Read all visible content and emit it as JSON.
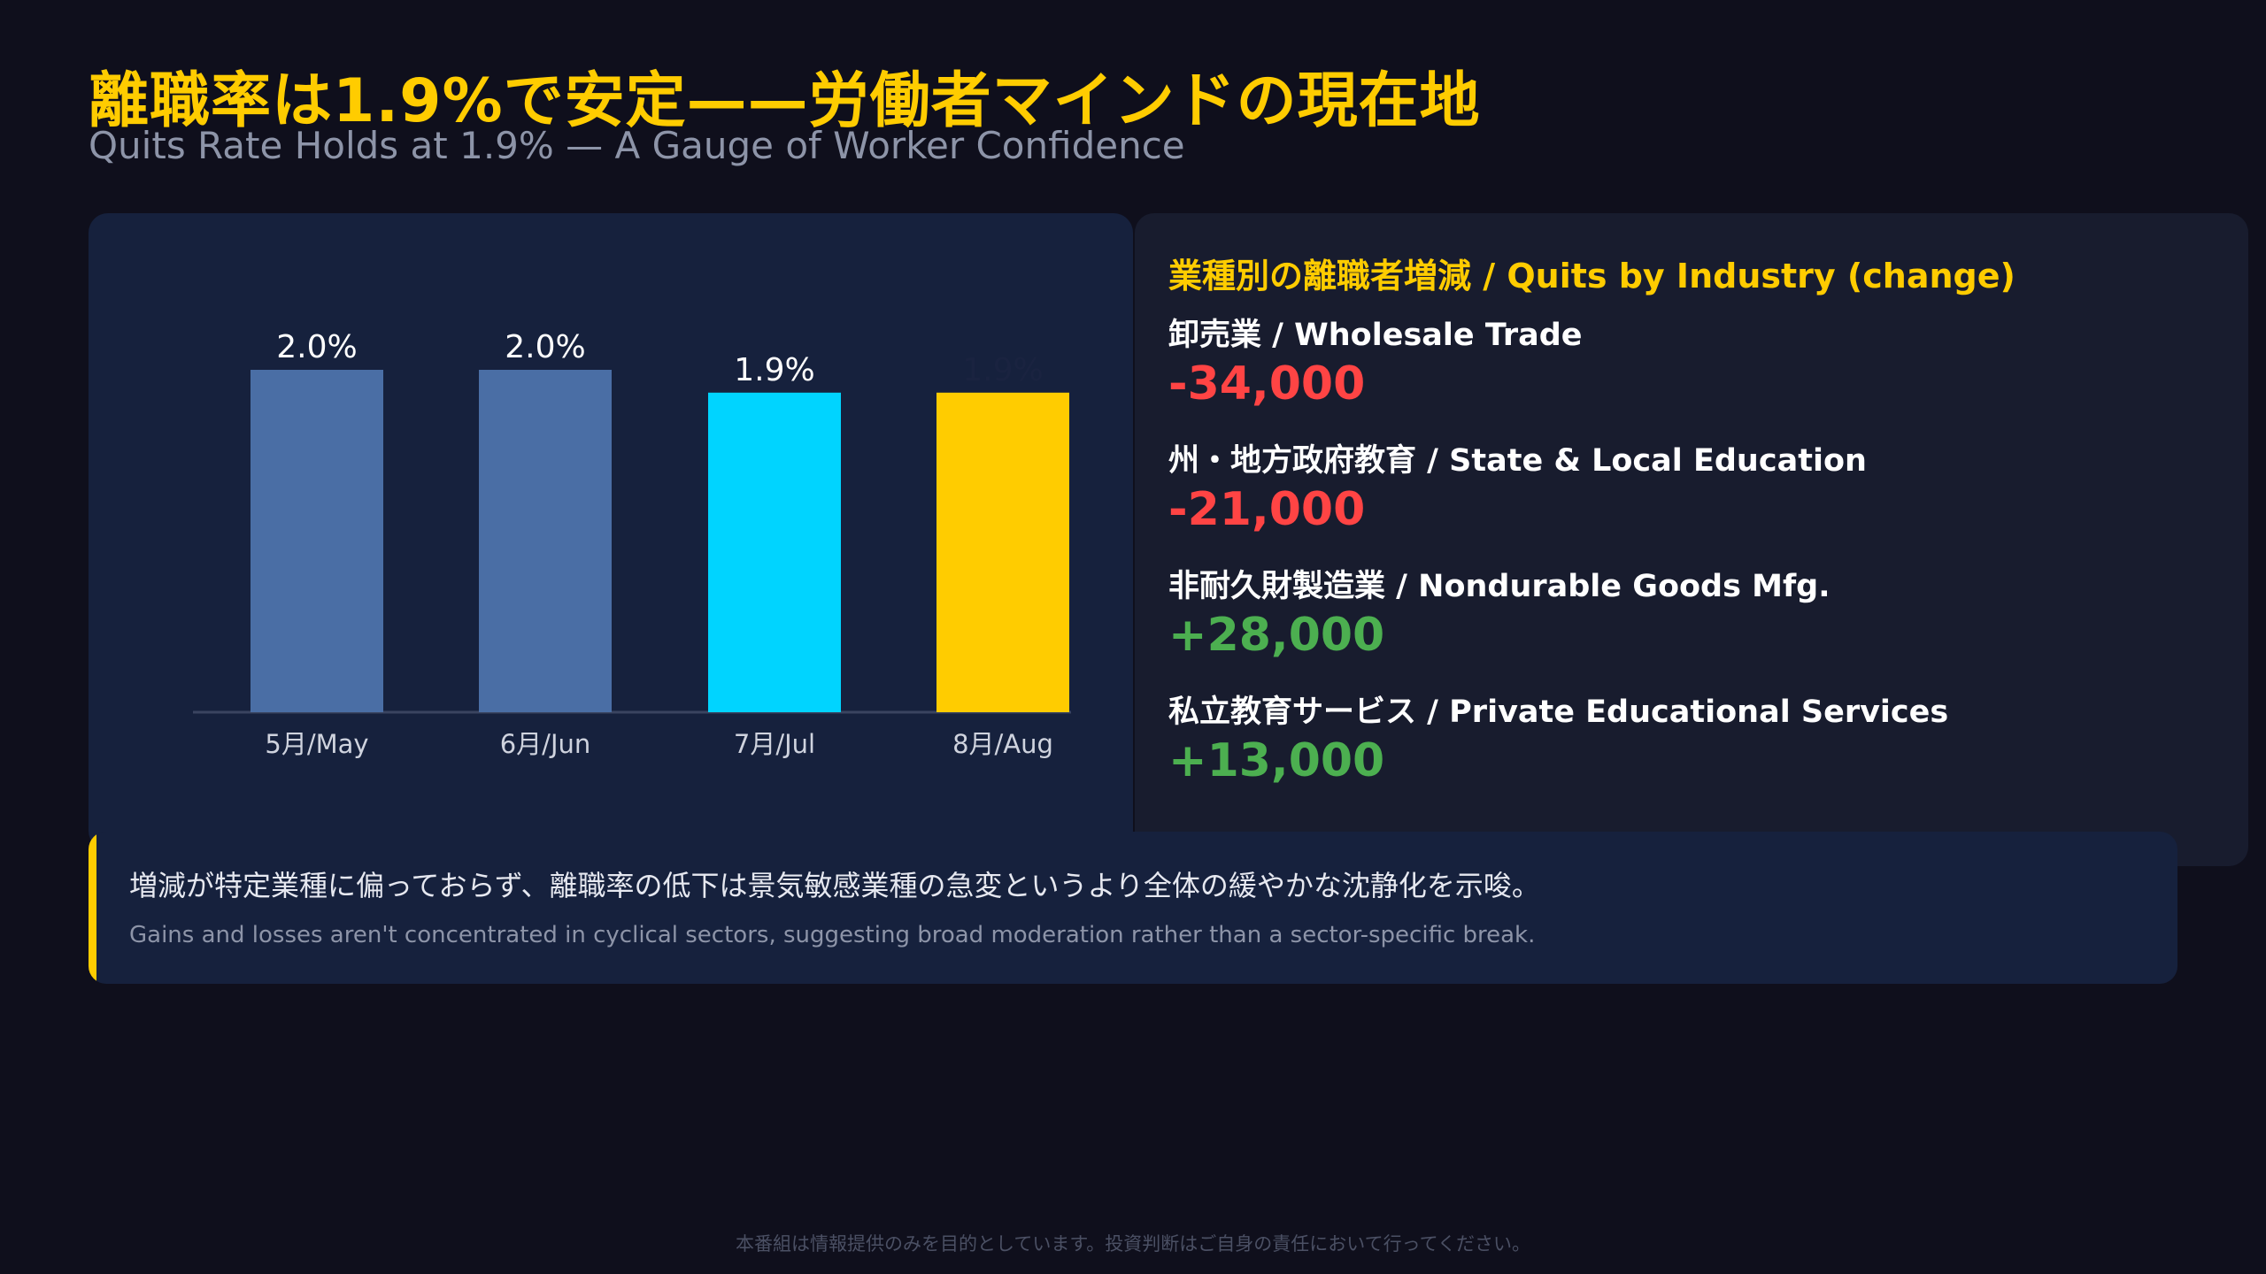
{
  "header": {
    "title_ja": "離職率は1.9%で安定——労働者マインドの現在地",
    "title_en": "Quits Rate Holds at 1.9% — A Gauge of Worker Confidence"
  },
  "chart_data": {
    "type": "bar",
    "categories": [
      "5月/May",
      "6月/Jun",
      "7月/Jul",
      "8月/Aug"
    ],
    "values": [
      2.0,
      2.0,
      1.9,
      1.9
    ],
    "data_labels": [
      "2.0%",
      "2.0%",
      "1.9%",
      "1.9%"
    ],
    "bar_colors": [
      "#4a6ea5",
      "#4a6ea5",
      "#00d4ff",
      "#ffcc00"
    ],
    "label_colors": [
      "#ffffff",
      "#ffffff",
      "#ffffff",
      "#1a2340"
    ],
    "baseline_value": 0.5,
    "title": "",
    "xlabel": "",
    "ylabel": "",
    "grid": false
  },
  "industry": {
    "title": "業種別の離職者増減 / Quits by Industry (change)",
    "items": [
      {
        "name": "卸売業 / Wholesale Trade",
        "value": "-34,000",
        "color": "#ff4444"
      },
      {
        "name": "州・地方政府教育 / State & Local Education",
        "value": "-21,000",
        "color": "#ff4444"
      },
      {
        "name": "非耐久財製造業 / Nondurable Goods Mfg.",
        "value": "+28,000",
        "color": "#4caf50"
      },
      {
        "name": "私立教育サービス / Private Educational Services",
        "value": "+13,000",
        "color": "#4caf50"
      }
    ]
  },
  "note": {
    "ja": "増減が特定業種に偏っておらず、離職率の低下は景気敏感業種の急変というより全体の緩やかな沈静化を示唆。",
    "en": "Gains and losses aren't concentrated in cyclical sectors, suggesting broad moderation rather than a sector-specific break."
  },
  "footer": {
    "disclaimer": "本番組は情報提供のみを目的としています。投資判断はご自身の責任において行ってください。"
  }
}
